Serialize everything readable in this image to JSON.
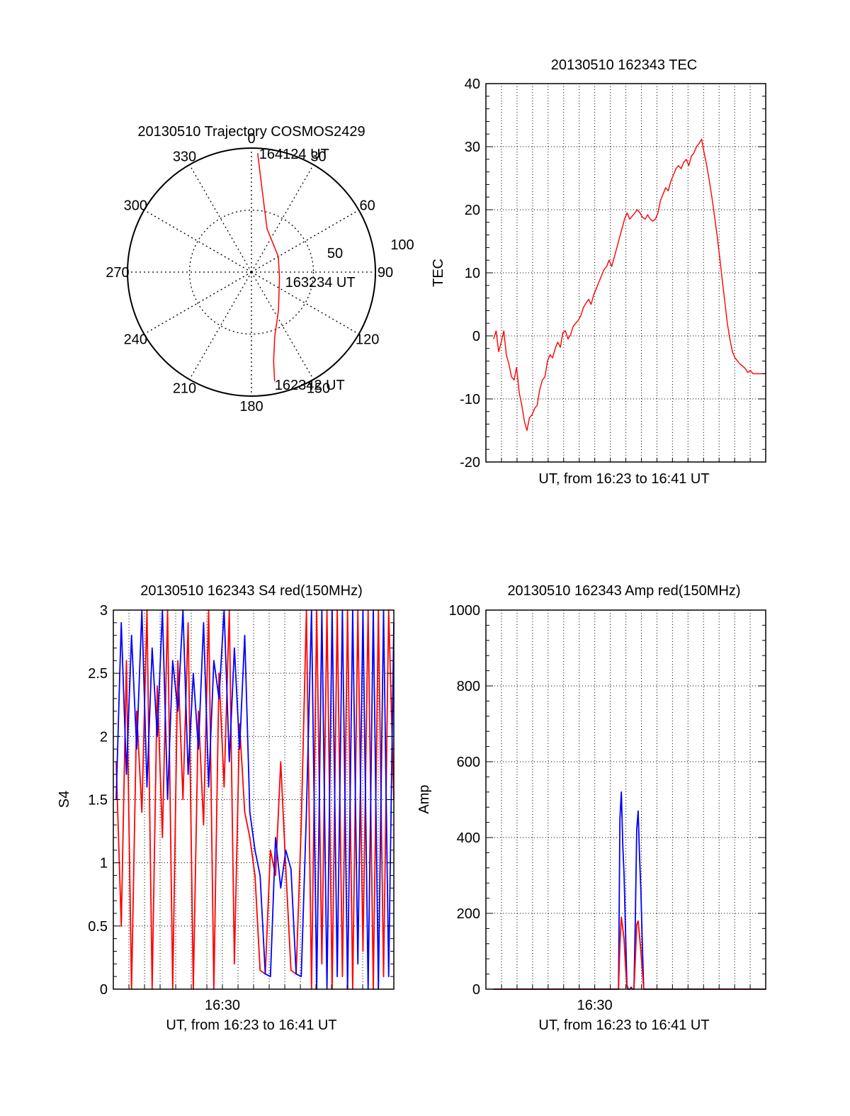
{
  "chart_data": [
    {
      "type": "polar",
      "title": "20130510 Trajectory COSMOS2429",
      "azimuth_labels": [
        "0",
        "30",
        "60",
        "90",
        "120",
        "150",
        "180",
        "210",
        "240",
        "270",
        "300",
        "330"
      ],
      "radial_labels": [
        "50",
        "100"
      ],
      "rlim": [
        0,
        100
      ],
      "grid": true,
      "series": [
        {
          "color": "#ff0000",
          "points": [
            [
              3,
              96
            ],
            [
              5,
              80
            ],
            [
              10,
              57
            ],
            [
              20,
              37
            ],
            [
              60,
              25
            ],
            [
              100,
              23
            ],
            [
              145,
              38
            ],
            [
              160,
              55
            ],
            [
              166,
              74
            ],
            [
              168,
              90
            ]
          ]
        }
      ],
      "annotations": [
        {
          "text": "164124 UT",
          "at": [
            3,
            96
          ]
        },
        {
          "text": "163234 UT",
          "at": [
            100,
            23
          ]
        },
        {
          "text": "162342 UT",
          "at": [
            168,
            90
          ]
        }
      ]
    },
    {
      "type": "line",
      "title": "20130510 162343 TEC",
      "xlabel": "UT, from 16:23 to 16:41 UT",
      "ylabel": "TEC",
      "xlim": [
        16.3833,
        16.6833
      ],
      "ylim": [
        -20,
        40
      ],
      "yticks": [
        "-20",
        "-10",
        "0",
        "10",
        "20",
        "30",
        "40"
      ],
      "grid": true,
      "series": [
        {
          "color": "#ff0000",
          "x": [
            16.3915,
            16.3942,
            16.397,
            16.3997,
            16.4025,
            16.4052,
            16.408,
            16.4107,
            16.4135,
            16.4162,
            16.419,
            16.4218,
            16.4245,
            16.4273,
            16.43,
            16.4328,
            16.4355,
            16.4383,
            16.441,
            16.4438,
            16.4466,
            16.4493,
            16.4521,
            16.4548,
            16.4576,
            16.4603,
            16.4631,
            16.4658,
            16.4686,
            16.4713,
            16.4741,
            16.4769,
            16.4796,
            16.4824,
            16.4851,
            16.4879,
            16.4906,
            16.4934,
            16.4961,
            16.4989,
            16.5016,
            16.5044,
            16.5072,
            16.5099,
            16.5127,
            16.5154,
            16.5182,
            16.5209,
            16.5237,
            16.5264,
            16.5292,
            16.5319,
            16.5347,
            16.5375,
            16.5402,
            16.543,
            16.5457,
            16.5485,
            16.5512,
            16.554,
            16.5567,
            16.5595,
            16.5623,
            16.565,
            16.5678,
            16.5705,
            16.5733,
            16.576,
            16.5788,
            16.5815,
            16.5843,
            16.587,
            16.5898,
            16.5926,
            16.5953,
            16.5981,
            16.6008,
            16.6036,
            16.6063,
            16.6091,
            16.6118,
            16.6146,
            16.6173,
            16.6201,
            16.6229,
            16.6256,
            16.6284,
            16.6311,
            16.6339,
            16.6366,
            16.6394,
            16.6421,
            16.6449,
            16.6476,
            16.6504,
            16.6532,
            16.6559,
            16.6587,
            16.6614,
            16.6642,
            16.6669,
            16.6697,
            16.6724,
            16.6752,
            16.6779,
            16.6807,
            16.6833
          ],
          "values": [
            -0.5,
            0.8,
            -2.5,
            -1.0,
            0.8,
            -3.0,
            -4.5,
            -6.5,
            -7.0,
            -5.0,
            -9.0,
            -11.0,
            -13.5,
            -15.0,
            -13.0,
            -12.5,
            -11.5,
            -11.0,
            -8.5,
            -7.0,
            -6.5,
            -4.0,
            -3.0,
            -3.5,
            -2.0,
            -1.0,
            -1.8,
            0.5,
            0.8,
            -0.5,
            0.2,
            1.5,
            2.0,
            2.5,
            3.2,
            4.5,
            5.2,
            5.8,
            5.0,
            6.5,
            7.5,
            8.5,
            9.5,
            10.5,
            11.0,
            12.0,
            11.0,
            12.5,
            14.0,
            15.5,
            17.0,
            18.5,
            19.5,
            18.5,
            19.0,
            19.5,
            20.0,
            19.5,
            18.8,
            18.5,
            19.2,
            18.5,
            18.2,
            18.5,
            19.5,
            21.5,
            22.5,
            23.5,
            23.0,
            24.5,
            25.5,
            26.5,
            27.0,
            26.5,
            27.5,
            28.0,
            27.0,
            28.5,
            29.0,
            30.0,
            30.5,
            31.2,
            29.0,
            27.0,
            24.5,
            22.0,
            19.0,
            16.0,
            12.5,
            9.0,
            5.5,
            2.0,
            -0.5,
            -2.5,
            -3.5,
            -4.0,
            -4.5,
            -4.8,
            -5.2,
            -5.8,
            -5.5,
            -6.0,
            -6.0,
            -6.0,
            -6.0,
            -6.0,
            -6.0
          ]
        }
      ]
    },
    {
      "type": "line",
      "title": "20130510 162343 S4 red(150MHz)",
      "xlabel": "UT, from 16:23 to 16:41 UT",
      "ylabel": "S4",
      "xlim": [
        16.3833,
        16.6833
      ],
      "xticks": [
        "16:30"
      ],
      "ylim": [
        0,
        3
      ],
      "yticks": [
        "0",
        "0.5",
        "1",
        "1.5",
        "2",
        "2.5",
        "3"
      ],
      "grid": true,
      "series": [
        {
          "color": "#ff0000",
          "x": [
            16.3863,
            16.3918,
            16.3973,
            16.4028,
            16.4083,
            16.4138,
            16.4193,
            16.4248,
            16.4303,
            16.4358,
            16.4413,
            16.4468,
            16.4523,
            16.4578,
            16.4633,
            16.4688,
            16.4743,
            16.4798,
            16.4853,
            16.4908,
            16.4963,
            16.5018,
            16.5073,
            16.5128,
            16.5183,
            16.5238,
            16.5293,
            16.5348,
            16.5403,
            16.5458,
            16.5513,
            16.5568,
            16.5623,
            16.5678,
            16.5733,
            16.5788,
            16.5843,
            16.5898,
            16.5953,
            16.6008,
            16.6063,
            16.6118,
            16.6173,
            16.6228,
            16.6283,
            16.6338,
            16.6393,
            16.6448,
            16.6503,
            16.6558,
            16.6613,
            16.6668,
            16.6723,
            16.6778,
            16.6833
          ],
          "values": [
            1.8,
            0.5,
            2.6,
            0.0,
            2.2,
            1.4,
            3.0,
            0.0,
            2.4,
            1.2,
            3.0,
            0.0,
            2.6,
            1.5,
            2.9,
            0.0,
            2.2,
            1.3,
            3.0,
            0.0,
            2.5,
            1.6,
            3.0,
            0.2,
            2.1,
            1.4,
            1.2,
            0.9,
            0.15,
            0.12,
            1.1,
            0.9,
            1.8,
            0.95,
            0.15,
            0.12,
            1.3,
            3.0,
            0.0,
            3.0,
            0.2,
            3.0,
            0.0,
            3.0,
            0.1,
            3.0,
            0.0,
            3.0,
            0.3,
            3.0,
            0.0,
            3.0,
            0.1,
            3.0,
            1.5
          ]
        },
        {
          "color": "#0000ff",
          "x": [
            16.3863,
            16.3918,
            16.3973,
            16.4028,
            16.4083,
            16.4138,
            16.4193,
            16.4248,
            16.4303,
            16.4358,
            16.4413,
            16.4468,
            16.4523,
            16.4578,
            16.4633,
            16.4688,
            16.4743,
            16.4798,
            16.4853,
            16.4908,
            16.4963,
            16.5018,
            16.5073,
            16.5128,
            16.5183,
            16.5238,
            16.5293,
            16.5348,
            16.5403,
            16.5458,
            16.5513,
            16.5568,
            16.5623,
            16.5678,
            16.5733,
            16.5788,
            16.5843,
            16.5898,
            16.5953,
            16.6008,
            16.6063,
            16.6118,
            16.6173,
            16.6228,
            16.6283,
            16.6338,
            16.6393,
            16.6448,
            16.6503,
            16.6558,
            16.6613,
            16.6668,
            16.6723,
            16.6778,
            16.6833
          ],
          "values": [
            1.5,
            2.9,
            1.7,
            2.8,
            1.9,
            3.0,
            1.6,
            2.7,
            2.0,
            3.0,
            1.5,
            2.6,
            2.2,
            3.0,
            1.7,
            2.5,
            1.9,
            2.9,
            1.6,
            2.6,
            2.3,
            3.0,
            1.8,
            2.7,
            1.9,
            2.8,
            1.4,
            1.1,
            0.9,
            0.12,
            0.1,
            1.2,
            0.8,
            1.1,
            0.95,
            0.12,
            0.1,
            1.4,
            3.0,
            0.0,
            3.0,
            0.0,
            3.0,
            0.1,
            3.0,
            0.0,
            3.0,
            0.2,
            3.0,
            0.0,
            3.0,
            0.0,
            3.0,
            0.1,
            2.9
          ]
        }
      ]
    },
    {
      "type": "line",
      "title": "20130510 162343 Amp red(150MHz)",
      "xlabel": "UT, from 16:23 to 16:41 UT",
      "ylabel": "Amp",
      "xlim": [
        16.3833,
        16.6833
      ],
      "xticks": [
        "16:30"
      ],
      "ylim": [
        0,
        1000
      ],
      "yticks": [
        "0",
        "200",
        "400",
        "600",
        "800",
        "1000"
      ],
      "grid": true,
      "series": [
        {
          "color": "#0000ff",
          "x": [
            16.3915,
            16.45,
            16.52,
            16.5255,
            16.527,
            16.5285,
            16.53,
            16.5315,
            16.533,
            16.5345,
            16.536,
            16.5375,
            16.539,
            16.5405,
            16.542,
            16.5435,
            16.545,
            16.5465,
            16.548,
            16.5495,
            16.551,
            16.5525,
            16.554,
            16.5555,
            16.557,
            16.6,
            16.6833
          ],
          "values": [
            0,
            0,
            0,
            0,
            450,
            520,
            380,
            300,
            150,
            10,
            0,
            0,
            5,
            0,
            0,
            180,
            420,
            470,
            350,
            260,
            120,
            0,
            0,
            0,
            0,
            0,
            0
          ]
        },
        {
          "color": "#ff0000",
          "x": [
            16.3915,
            16.45,
            16.52,
            16.5255,
            16.527,
            16.5285,
            16.53,
            16.5315,
            16.533,
            16.5345,
            16.536,
            16.5375,
            16.539,
            16.5405,
            16.542,
            16.5435,
            16.545,
            16.5465,
            16.548,
            16.5495,
            16.551,
            16.5525,
            16.554,
            16.5555,
            16.557,
            16.6,
            16.6833
          ],
          "values": [
            0,
            0,
            0,
            0,
            120,
            190,
            160,
            130,
            60,
            5,
            0,
            0,
            2,
            0,
            0,
            80,
            170,
            180,
            140,
            100,
            50,
            0,
            0,
            0,
            0,
            0,
            0
          ]
        }
      ]
    }
  ]
}
